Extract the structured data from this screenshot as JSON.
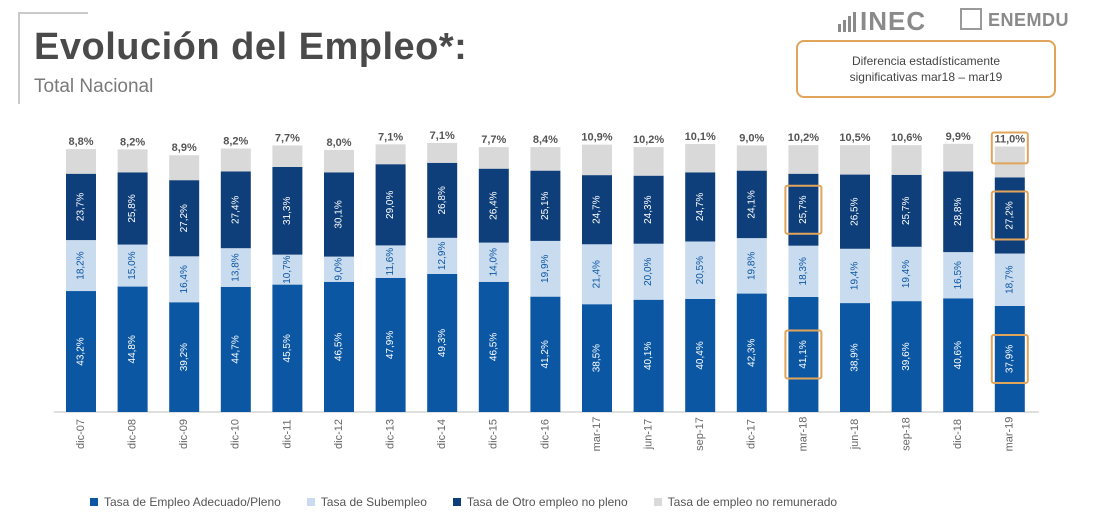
{
  "header": {
    "title": "Evolución del Empleo*:",
    "subtitle": "Total Nacional"
  },
  "logo": {
    "inec": "INEC",
    "enemdu": "ENEMDU"
  },
  "note": {
    "line1": "Diferencia estadísticamente",
    "line2": "significativas   mar18 – mar19"
  },
  "colors": {
    "adecuado": "#0b57a4",
    "subempleo": "#c9dbee",
    "otro": "#0f3f7a",
    "no_remunerado": "#d9d9d9",
    "highlight": "#e0a45a"
  },
  "chart_data": {
    "type": "bar",
    "stacked": true,
    "categories": [
      "dic-07",
      "dic-08",
      "dic-09",
      "dic-10",
      "dic-11",
      "dic-12",
      "dic-13",
      "dic-14",
      "dic-15",
      "dic-16",
      "mar-17",
      "jun-17",
      "sep-17",
      "dic-17",
      "mar-18",
      "jun-18",
      "sep-18",
      "dic-18",
      "mar-19"
    ],
    "series": [
      {
        "name": "Tasa de Empleo Adecuado/Pleno",
        "labels": [
          "43,2%",
          "44,8%",
          "39,2%",
          "44,7%",
          "45,5%",
          "46,5%",
          "47,9%",
          "49,3%",
          "46,5%",
          "41,2%",
          "38,5%",
          "40,1%",
          "40,4%",
          "42,3%",
          "41,1%",
          "38,9%",
          "39,6%",
          "40,6%",
          "37,9%"
        ],
        "values": [
          43.2,
          44.8,
          39.2,
          44.7,
          45.5,
          46.5,
          47.9,
          49.3,
          46.5,
          41.2,
          38.5,
          40.1,
          40.4,
          42.3,
          41.1,
          38.9,
          39.6,
          40.6,
          37.9
        ]
      },
      {
        "name": "Tasa de Subempleo",
        "labels": [
          "18,2%",
          "15,0%",
          "16,4%",
          "13,8%",
          "10,7%",
          "9,0%",
          "11,6%",
          "12,9%",
          "14,0%",
          "19,9%",
          "21,4%",
          "20,0%",
          "20,5%",
          "19,8%",
          "18,3%",
          "19,4%",
          "19,4%",
          "16,5%",
          "18,7%"
        ],
        "values": [
          18.2,
          15.0,
          16.4,
          13.8,
          10.7,
          9.0,
          11.6,
          12.9,
          14.0,
          19.9,
          21.4,
          20.0,
          20.5,
          19.8,
          18.3,
          19.4,
          19.4,
          16.5,
          18.7
        ]
      },
      {
        "name": "Tasa de Otro empleo no pleno",
        "labels": [
          "23,7%",
          "25,8%",
          "27,2%",
          "27,4%",
          "31,3%",
          "30,1%",
          "29,0%",
          "26,8%",
          "26,4%",
          "25,1%",
          "24,7%",
          "24,3%",
          "24,7%",
          "24,1%",
          "25,7%",
          "26,5%",
          "25,7%",
          "28,8%",
          "27,2%"
        ],
        "values": [
          23.7,
          25.8,
          27.2,
          27.4,
          31.3,
          30.1,
          29.0,
          26.8,
          26.4,
          25.1,
          24.7,
          24.3,
          24.7,
          24.1,
          25.7,
          26.5,
          25.7,
          28.8,
          27.2
        ]
      },
      {
        "name": "Tasa de empleo no remunerado",
        "labels": [
          "8,8%",
          "8,2%",
          "8,9%",
          "8,2%",
          "7,7%",
          "8,0%",
          "7,1%",
          "7,1%",
          "7,7%",
          "8,4%",
          "10,9%",
          "10,2%",
          "10,1%",
          "9,0%",
          "10,2%",
          "10,5%",
          "10,6%",
          "9,9%",
          "11,0%"
        ],
        "values": [
          8.8,
          8.2,
          8.9,
          8.2,
          7.7,
          8.0,
          7.1,
          7.1,
          7.7,
          8.4,
          10.9,
          10.2,
          10.1,
          9.0,
          10.2,
          10.5,
          10.6,
          9.9,
          11.0
        ]
      }
    ],
    "ylim": [
      0,
      100
    ],
    "grid": false,
    "legend_position": "bottom",
    "highlighted": [
      {
        "category": "mar-18",
        "series": "Tasa de Empleo Adecuado/Pleno"
      },
      {
        "category": "mar-18",
        "series": "Tasa de Otro empleo no pleno"
      },
      {
        "category": "mar-19",
        "series": "Tasa de Empleo Adecuado/Pleno"
      },
      {
        "category": "mar-19",
        "series": "Tasa de Otro empleo no pleno"
      },
      {
        "category": "mar-19",
        "series": "Tasa de empleo no remunerado"
      }
    ]
  }
}
